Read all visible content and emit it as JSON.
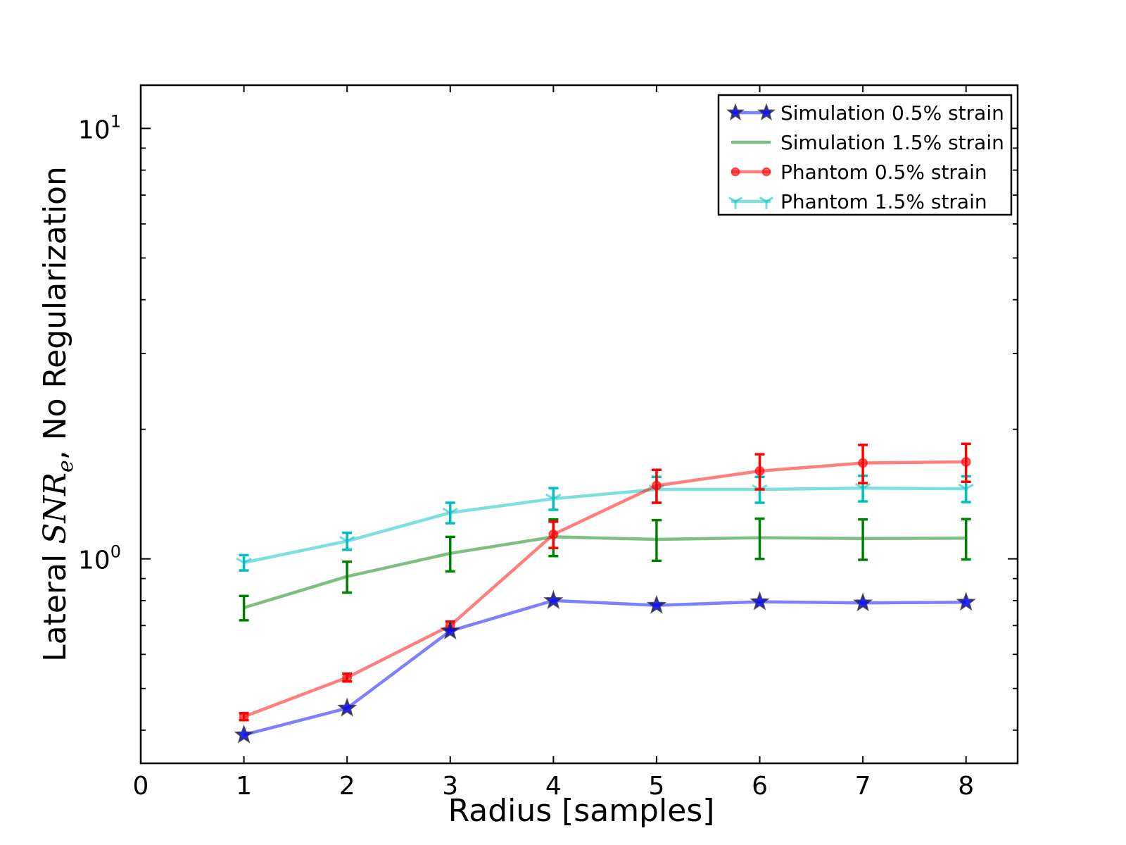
{
  "chart_data": {
    "type": "line",
    "xlabel": "Radius [samples]",
    "ylabel": {
      "prefix": "Lateral ",
      "math_main": "SNR",
      "math_sub": "e",
      "suffix": ", No Regularization"
    },
    "yscale": "log",
    "xlim": [
      0,
      8.5
    ],
    "ylim": [
      0.335,
      12.6
    ],
    "x_ticks": [
      0,
      1,
      2,
      3,
      4,
      5,
      6,
      7,
      8
    ],
    "y_ticks": [
      {
        "value": 1,
        "label_base": "10",
        "label_exp": "0"
      },
      {
        "value": 10,
        "label_base": "10",
        "label_exp": "1"
      }
    ],
    "y_minor_ticks": [
      0.4,
      0.5,
      0.6,
      0.7,
      0.8,
      0.9,
      2,
      3,
      4,
      5,
      6,
      7,
      8,
      9
    ],
    "grid": false,
    "legend_position": "top-right",
    "x": [
      1,
      2,
      3,
      4,
      5,
      6,
      7,
      8
    ],
    "series": [
      {
        "name": "Simulation 0.5% strain",
        "color": "#0000ff",
        "marker": "star",
        "values": [
          0.39,
          0.45,
          0.68,
          0.8,
          0.78,
          0.795,
          0.79,
          0.793
        ],
        "errors": null
      },
      {
        "name": "Simulation 1.5% strain",
        "color": "#008000",
        "marker": "none",
        "values": [
          0.77,
          0.91,
          1.03,
          1.125,
          1.11,
          1.12,
          1.115,
          1.117
        ],
        "errors": [
          0.05,
          0.075,
          0.095,
          0.11,
          0.12,
          0.12,
          0.12,
          0.12
        ]
      },
      {
        "name": "Phantom 0.5% strain",
        "color": "#ff0000",
        "marker": "circle",
        "values": [
          0.43,
          0.53,
          0.7,
          1.14,
          1.48,
          1.6,
          1.67,
          1.68
        ],
        "errors": [
          0.008,
          0.011,
          0.015,
          0.08,
          0.13,
          0.15,
          0.17,
          0.17
        ]
      },
      {
        "name": "Phantom 1.5% strain",
        "color": "#00bfbf",
        "marker": "tri_down",
        "values": [
          0.98,
          1.1,
          1.28,
          1.38,
          1.45,
          1.45,
          1.46,
          1.455
        ],
        "errors": [
          0.04,
          0.05,
          0.07,
          0.08,
          0.1,
          0.1,
          0.1,
          0.1
        ]
      }
    ]
  }
}
